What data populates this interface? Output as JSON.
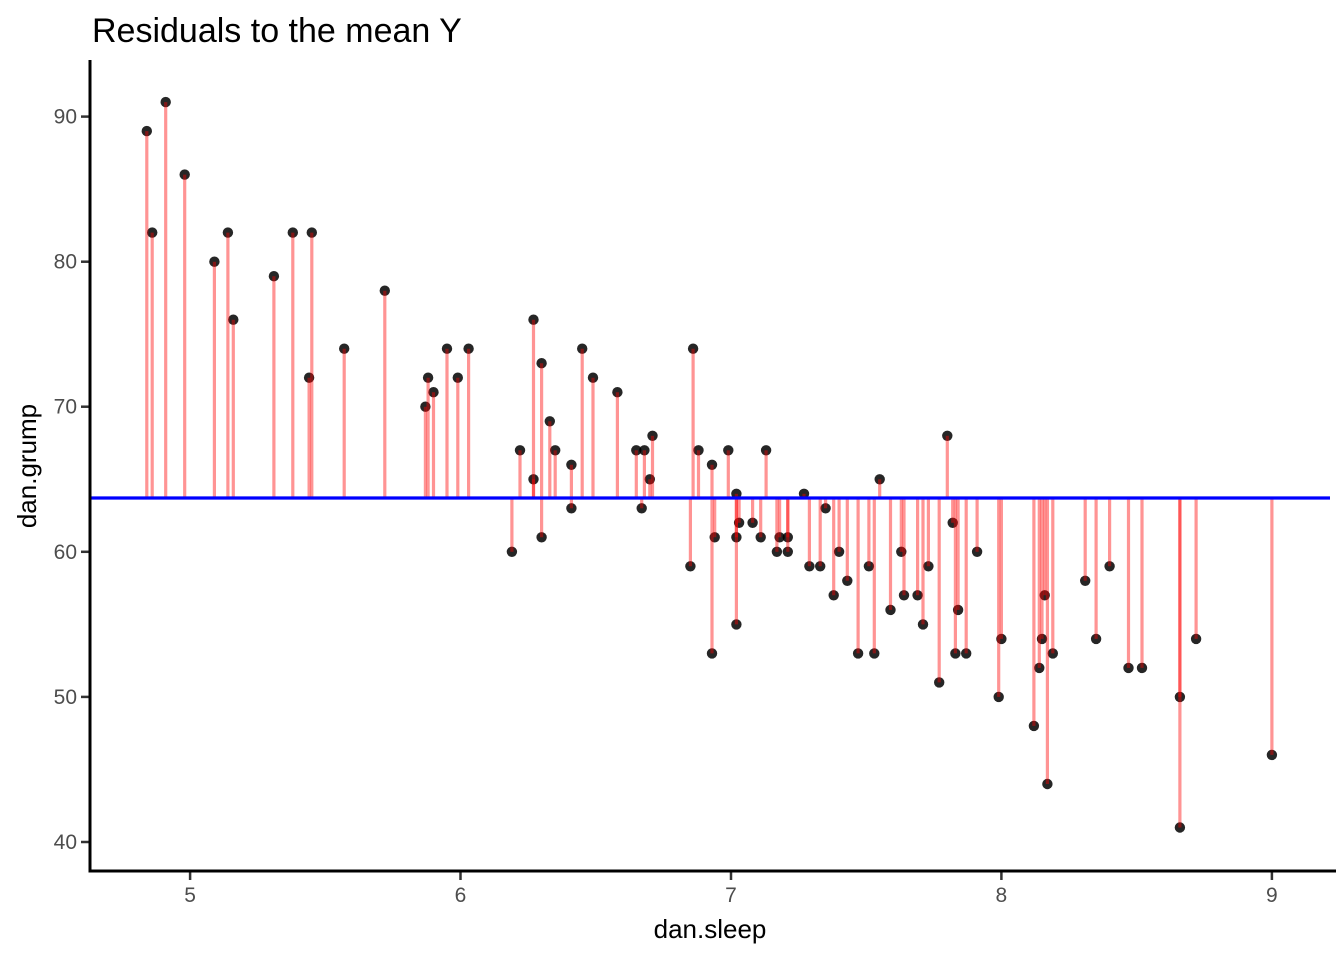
{
  "title": "Residuals to the mean Y",
  "chart_data": {
    "type": "scatter",
    "title": "Residuals to the mean Y",
    "xlabel": "dan.sleep",
    "ylabel": "dan.grump",
    "x_ticks": [
      5,
      6,
      7,
      8,
      9
    ],
    "y_ticks": [
      40,
      50,
      60,
      70,
      80,
      90
    ],
    "xlim": [
      4.63,
      9.215
    ],
    "ylim": [
      38.0,
      93.9
    ],
    "grid": "off",
    "legend": "none",
    "mean_y": 63.71,
    "colors": {
      "mean_line": "#0000ff",
      "stem": "#ff0000",
      "stem_opacity": 0.42,
      "point": "#000000",
      "point_opacity": 0.85,
      "axis_line": "#000000",
      "tick_mark": "#333333",
      "tick_label": "#4d4d4d"
    },
    "points": [
      [
        4.84,
        89
      ],
      [
        4.86,
        82
      ],
      [
        4.91,
        91
      ],
      [
        4.98,
        86
      ],
      [
        5.09,
        80
      ],
      [
        5.14,
        82
      ],
      [
        5.16,
        76
      ],
      [
        5.31,
        79
      ],
      [
        5.38,
        82
      ],
      [
        5.44,
        72
      ],
      [
        5.45,
        82
      ],
      [
        5.57,
        74
      ],
      [
        5.72,
        78
      ],
      [
        5.87,
        70
      ],
      [
        5.88,
        72
      ],
      [
        5.9,
        71
      ],
      [
        5.95,
        74
      ],
      [
        5.99,
        72
      ],
      [
        6.03,
        74
      ],
      [
        6.19,
        60
      ],
      [
        6.22,
        67
      ],
      [
        6.27,
        76
      ],
      [
        6.27,
        65
      ],
      [
        6.3,
        73
      ],
      [
        6.3,
        61
      ],
      [
        6.33,
        69
      ],
      [
        6.35,
        67
      ],
      [
        6.41,
        66
      ],
      [
        6.41,
        63
      ],
      [
        6.45,
        74
      ],
      [
        6.49,
        72
      ],
      [
        6.58,
        71
      ],
      [
        6.65,
        67
      ],
      [
        6.67,
        63
      ],
      [
        6.68,
        67
      ],
      [
        6.7,
        65
      ],
      [
        6.71,
        68
      ],
      [
        6.85,
        59
      ],
      [
        6.86,
        74
      ],
      [
        6.88,
        67
      ],
      [
        6.93,
        66
      ],
      [
        6.93,
        53
      ],
      [
        6.94,
        61
      ],
      [
        6.99,
        67
      ],
      [
        7.02,
        64
      ],
      [
        7.02,
        61
      ],
      [
        7.02,
        55
      ],
      [
        7.03,
        62
      ],
      [
        7.08,
        62
      ],
      [
        7.11,
        61
      ],
      [
        7.13,
        67
      ],
      [
        7.18,
        61
      ],
      [
        7.21,
        61
      ],
      [
        7.17,
        60
      ],
      [
        7.21,
        60
      ],
      [
        7.27,
        64
      ],
      [
        7.29,
        59
      ],
      [
        7.33,
        59
      ],
      [
        7.35,
        63
      ],
      [
        7.38,
        57
      ],
      [
        7.4,
        60
      ],
      [
        7.43,
        58
      ],
      [
        7.47,
        53
      ],
      [
        7.51,
        59
      ],
      [
        7.53,
        53
      ],
      [
        7.55,
        65
      ],
      [
        7.59,
        56
      ],
      [
        7.63,
        60
      ],
      [
        7.64,
        57
      ],
      [
        7.69,
        57
      ],
      [
        7.71,
        55
      ],
      [
        7.73,
        59
      ],
      [
        7.77,
        51
      ],
      [
        7.8,
        68
      ],
      [
        7.82,
        62
      ],
      [
        7.84,
        56
      ],
      [
        7.83,
        53
      ],
      [
        7.87,
        53
      ],
      [
        7.91,
        60
      ],
      [
        7.99,
        50
      ],
      [
        8.0,
        54
      ],
      [
        8.12,
        48
      ],
      [
        8.14,
        52
      ],
      [
        8.15,
        54
      ],
      [
        8.16,
        57
      ],
      [
        8.17,
        44
      ],
      [
        8.19,
        53
      ],
      [
        8.31,
        58
      ],
      [
        8.35,
        54
      ],
      [
        8.4,
        59
      ],
      [
        8.47,
        52
      ],
      [
        8.52,
        52
      ],
      [
        8.66,
        50
      ],
      [
        8.66,
        41
      ],
      [
        8.72,
        54
      ],
      [
        9.0,
        46
      ]
    ]
  }
}
